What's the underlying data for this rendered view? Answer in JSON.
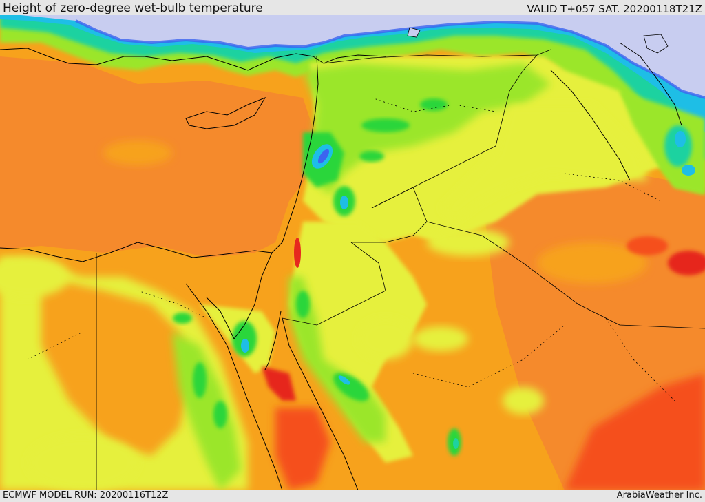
{
  "header": {
    "title": "Height of zero-degree wet-bulb temperature",
    "valid": "VALID T+057 SAT. 20200118T21Z"
  },
  "footer": {
    "model_run": "ECMWF MODEL RUN: 20200116T12Z",
    "credit": "ArabiaWeather Inc."
  },
  "colors": {
    "sea_base": "#f58a2c",
    "land_orange": "#f7a21c",
    "yellow": "#e6f03c",
    "light_green": "#9be62a",
    "green": "#2ad63a",
    "teal": "#1ed2a0",
    "cyan": "#1ebee6",
    "blue": "#3c64f0",
    "lavender": "#c8cdf0",
    "red_orange": "#f5501e",
    "red": "#e6281e",
    "border": "#000000"
  }
}
